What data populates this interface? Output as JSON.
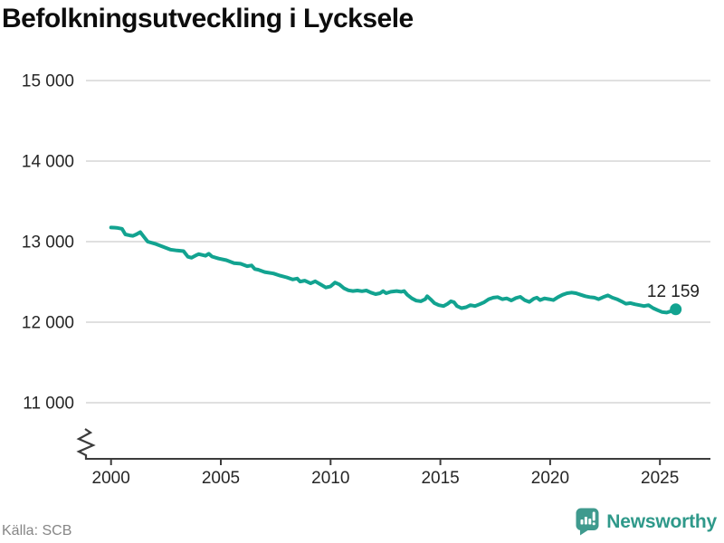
{
  "title": "Befolkningsutveckling i Lycksele",
  "footer": {
    "source": "Källa: SCB",
    "brand": "Newsworthy"
  },
  "colors": {
    "line": "#12a390",
    "logo": "#3f9a8e",
    "grid": "#d6d6d6",
    "axis": "#3c3c3c",
    "tick_label": "#262626",
    "end_label": "#1f1f1f",
    "source_text": "#868686"
  },
  "chart_data": {
    "type": "line",
    "title": "Befolkningsutveckling i Lycksele",
    "xlabel": "",
    "ylabel": "",
    "grid": "horizontal",
    "legend": "none",
    "axis_break": true,
    "xlim": [
      1998.9,
      2027.3
    ],
    "ylim": [
      11000,
      15000
    ],
    "x_ticks": [
      2000,
      2005,
      2010,
      2015,
      2020,
      2025
    ],
    "y_ticks": [
      {
        "value": 15000,
        "label": "15 000"
      },
      {
        "value": 14000,
        "label": "14 000"
      },
      {
        "value": 13000,
        "label": "13 000"
      },
      {
        "value": 12000,
        "label": "12 000"
      },
      {
        "value": 11000,
        "label": "11 000"
      }
    ],
    "end_label": {
      "text": "12 159",
      "value": 12159,
      "year": 2025.72
    },
    "series": [
      {
        "name": "Befolkning",
        "color": "#12a390",
        "points": [
          [
            2000.0,
            13175
          ],
          [
            2000.25,
            13172
          ],
          [
            2000.5,
            13160
          ],
          [
            2000.65,
            13090
          ],
          [
            2000.85,
            13078
          ],
          [
            2001.0,
            13072
          ],
          [
            2001.15,
            13090
          ],
          [
            2001.33,
            13118
          ],
          [
            2001.5,
            13058
          ],
          [
            2001.67,
            13000
          ],
          [
            2002.0,
            12974
          ],
          [
            2002.35,
            12938
          ],
          [
            2002.7,
            12901
          ],
          [
            2003.0,
            12890
          ],
          [
            2003.3,
            12882
          ],
          [
            2003.5,
            12812
          ],
          [
            2003.67,
            12800
          ],
          [
            2003.9,
            12835
          ],
          [
            2004.0,
            12845
          ],
          [
            2004.3,
            12825
          ],
          [
            2004.45,
            12850
          ],
          [
            2004.6,
            12815
          ],
          [
            2004.9,
            12790
          ],
          [
            2005.25,
            12770
          ],
          [
            2005.6,
            12733
          ],
          [
            2005.9,
            12726
          ],
          [
            2006.2,
            12696
          ],
          [
            2006.4,
            12705
          ],
          [
            2006.55,
            12660
          ],
          [
            2006.7,
            12652
          ],
          [
            2007.0,
            12622
          ],
          [
            2007.4,
            12604
          ],
          [
            2007.7,
            12578
          ],
          [
            2008.0,
            12556
          ],
          [
            2008.27,
            12530
          ],
          [
            2008.48,
            12542
          ],
          [
            2008.61,
            12505
          ],
          [
            2008.82,
            12516
          ],
          [
            2009.09,
            12482
          ],
          [
            2009.3,
            12508
          ],
          [
            2009.55,
            12467
          ],
          [
            2009.78,
            12430
          ],
          [
            2010.0,
            12445
          ],
          [
            2010.2,
            12492
          ],
          [
            2010.4,
            12468
          ],
          [
            2010.6,
            12422
          ],
          [
            2010.81,
            12396
          ],
          [
            2011.02,
            12386
          ],
          [
            2011.22,
            12393
          ],
          [
            2011.43,
            12384
          ],
          [
            2011.63,
            12393
          ],
          [
            2011.84,
            12367
          ],
          [
            2012.05,
            12348
          ],
          [
            2012.25,
            12360
          ],
          [
            2012.39,
            12385
          ],
          [
            2012.53,
            12359
          ],
          [
            2012.74,
            12378
          ],
          [
            2013.01,
            12386
          ],
          [
            2013.21,
            12378
          ],
          [
            2013.35,
            12386
          ],
          [
            2013.49,
            12341
          ],
          [
            2013.7,
            12296
          ],
          [
            2013.9,
            12267
          ],
          [
            2014.11,
            12259
          ],
          [
            2014.31,
            12285
          ],
          [
            2014.4,
            12322
          ],
          [
            2014.55,
            12285
          ],
          [
            2014.73,
            12237
          ],
          [
            2014.93,
            12211
          ],
          [
            2015.14,
            12200
          ],
          [
            2015.34,
            12229
          ],
          [
            2015.48,
            12259
          ],
          [
            2015.62,
            12248
          ],
          [
            2015.76,
            12200
          ],
          [
            2015.96,
            12174
          ],
          [
            2016.17,
            12185
          ],
          [
            2016.37,
            12211
          ],
          [
            2016.58,
            12200
          ],
          [
            2016.79,
            12222
          ],
          [
            2017.0,
            12248
          ],
          [
            2017.2,
            12285
          ],
          [
            2017.41,
            12304
          ],
          [
            2017.61,
            12311
          ],
          [
            2017.82,
            12285
          ],
          [
            2018.02,
            12296
          ],
          [
            2018.23,
            12270
          ],
          [
            2018.44,
            12300
          ],
          [
            2018.64,
            12315
          ],
          [
            2018.85,
            12272
          ],
          [
            2019.05,
            12252
          ],
          [
            2019.26,
            12292
          ],
          [
            2019.4,
            12304
          ],
          [
            2019.54,
            12274
          ],
          [
            2019.74,
            12296
          ],
          [
            2019.95,
            12285
          ],
          [
            2020.15,
            12274
          ],
          [
            2020.36,
            12311
          ],
          [
            2020.57,
            12341
          ],
          [
            2020.77,
            12359
          ],
          [
            2020.98,
            12367
          ],
          [
            2021.18,
            12359
          ],
          [
            2021.39,
            12341
          ],
          [
            2021.6,
            12322
          ],
          [
            2021.8,
            12311
          ],
          [
            2022.01,
            12304
          ],
          [
            2022.21,
            12285
          ],
          [
            2022.42,
            12311
          ],
          [
            2022.63,
            12333
          ],
          [
            2022.83,
            12304
          ],
          [
            2023.04,
            12285
          ],
          [
            2023.24,
            12259
          ],
          [
            2023.45,
            12229
          ],
          [
            2023.66,
            12237
          ],
          [
            2023.86,
            12222
          ],
          [
            2024.07,
            12211
          ],
          [
            2024.28,
            12200
          ],
          [
            2024.48,
            12211
          ],
          [
            2024.69,
            12174
          ],
          [
            2024.9,
            12148
          ],
          [
            2025.1,
            12126
          ],
          [
            2025.31,
            12119
          ],
          [
            2025.51,
            12137
          ],
          [
            2025.72,
            12159
          ]
        ]
      }
    ]
  }
}
